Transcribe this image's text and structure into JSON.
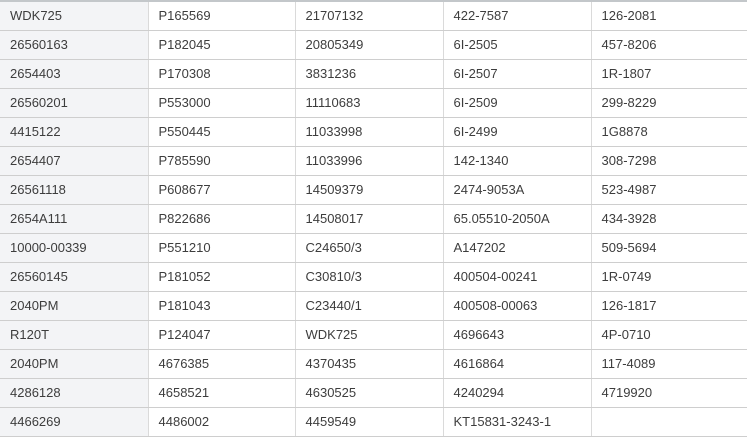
{
  "table": {
    "rows": [
      [
        "WDK725",
        "P165569",
        "21707132",
        "422-7587",
        "126-2081"
      ],
      [
        "26560163",
        "P182045",
        "20805349",
        "6I-2505",
        "457-8206"
      ],
      [
        "2654403",
        "P170308",
        "3831236",
        "6I-2507",
        "1R-1807"
      ],
      [
        "26560201",
        "P553000",
        "11110683",
        "6I-2509",
        "299-8229"
      ],
      [
        "4415122",
        "P550445",
        "11033998",
        "6I-2499",
        "1G8878"
      ],
      [
        "2654407",
        "P785590",
        "11033996",
        "142-1340",
        "308-7298"
      ],
      [
        "26561118",
        "P608677",
        "14509379",
        "2474-9053A",
        "523-4987"
      ],
      [
        "2654A111",
        "P822686",
        "14508017",
        "65.05510-2050A",
        "434-3928"
      ],
      [
        "10000-00339",
        "P551210",
        "C24650/3",
        "A147202",
        "509-5694"
      ],
      [
        "26560145",
        "P181052",
        "C30810/3",
        "400504-00241",
        "1R-0749"
      ],
      [
        "2040PM",
        "P181043",
        "C23440/1",
        "400508-00063",
        "126-1817"
      ],
      [
        "R120T",
        "P124047",
        "WDK725",
        "4696643",
        "4P-0710"
      ],
      [
        "2040PM",
        "4676385",
        "4370435",
        "4616864",
        "117-4089"
      ],
      [
        "4286128",
        "4658521",
        "4630525",
        "4240294",
        "4719920"
      ],
      [
        "4466269",
        "4486002",
        "4459549",
        "KT15831-3243-1",
        ""
      ]
    ]
  },
  "colors": {
    "first_column_background": "#f3f4f6",
    "cell_background": "#ffffff",
    "horizontal_border": "#cecece",
    "vertical_border": "#dadada",
    "top_border": "#c3c7ca",
    "text": "#3d3d3d"
  },
  "layout_hints": {
    "column_count": 5,
    "row_count": 15
  }
}
